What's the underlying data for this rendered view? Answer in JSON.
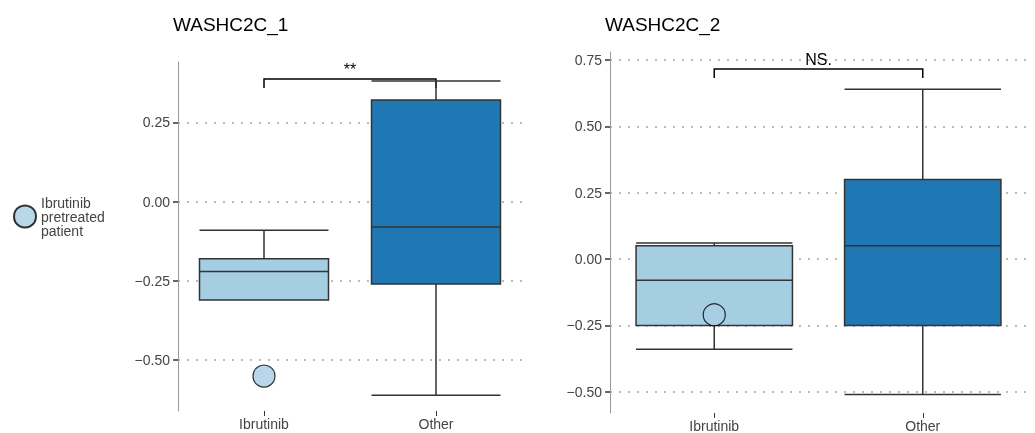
{
  "chart_data": [
    {
      "type": "box",
      "title": "WASHC2C_1",
      "categories": [
        "Ibrutinib",
        "Other"
      ],
      "ylim": [
        -0.66,
        0.44
      ],
      "yticks": [
        {
          "value": -0.5,
          "label": "−0.50"
        },
        {
          "value": -0.25,
          "label": "−0.25"
        },
        {
          "value": 0,
          "label": "0.00"
        },
        {
          "value": 0.25,
          "label": "0.25"
        }
      ],
      "grid": "y",
      "legend": "left",
      "annotations": [
        "**"
      ],
      "series": [
        {
          "colors": [
            "#a6cee3",
            "#1f78b4"
          ],
          "boxes": [
            {
              "low": -0.31,
              "q1": -0.31,
              "median": -0.22,
              "q3": -0.18,
              "high": -0.09
            },
            {
              "low": -0.61,
              "q1": -0.26,
              "median": -0.08,
              "q3": 0.32,
              "high": 0.38
            }
          ]
        },
        {
          "type": "scatter",
          "name": "Ibrutinib pretreated patient",
          "color": "#a6cee3",
          "x": [
            "Ibrutinib"
          ],
          "values": [
            -0.55
          ]
        }
      ]
    },
    {
      "type": "box",
      "title": "WASHC2C_2",
      "categories": [
        "Ibrutinib",
        "Other"
      ],
      "ylim": [
        -0.58,
        0.78
      ],
      "yticks": [
        {
          "value": -0.5,
          "label": "−0.50"
        },
        {
          "value": -0.25,
          "label": "−0.25"
        },
        {
          "value": 0,
          "label": "0.00"
        },
        {
          "value": 0.25,
          "label": "0.25"
        },
        {
          "value": 0.5,
          "label": "0.50"
        },
        {
          "value": 0.75,
          "label": "0.75"
        }
      ],
      "grid": "y",
      "annotations": [
        "NS."
      ],
      "series": [
        {
          "colors": [
            "#a6cee3",
            "#1f78b4"
          ],
          "boxes": [
            {
              "low": -0.34,
              "q1": -0.25,
              "median": -0.08,
              "q3": 0.05,
              "high": 0.06
            },
            {
              "low": -0.51,
              "q1": -0.25,
              "median": 0.05,
              "q3": 0.3,
              "high": 0.64
            }
          ]
        },
        {
          "type": "scatter",
          "color": "#a6cee3",
          "x": [
            "Ibrutinib"
          ],
          "values": [
            -0.21
          ]
        }
      ]
    }
  ]
}
